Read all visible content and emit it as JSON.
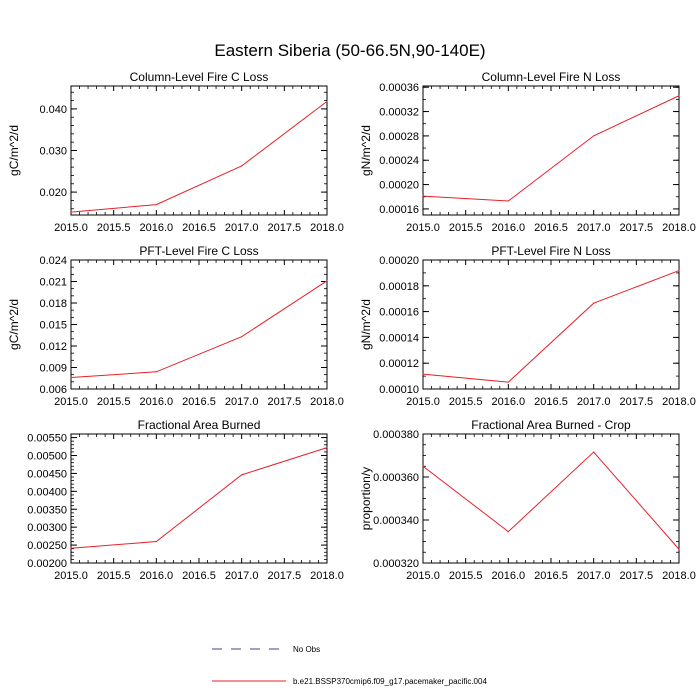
{
  "figure": {
    "title": "Eastern Siberia (50-66.5N,90-140E)"
  },
  "legend": {
    "placement": "bottom-center",
    "entries": [
      {
        "label": "No Obs",
        "style": "dashed",
        "color": "#4b3b8c"
      },
      {
        "label": "b.e21.BSSP370cmip6.f09_g17.pacemaker_pacific.004",
        "style": "solid",
        "color": "#e8202a"
      }
    ]
  },
  "chart_data": [
    {
      "type": "line",
      "title": "Column-Level Fire C Loss",
      "ylabel": "gC/m^2/d",
      "xlabel": "",
      "x": [
        2015.0,
        2016.0,
        2017.0,
        2018.0
      ],
      "xlim": [
        2015.0,
        2018.0
      ],
      "xticks": [
        "2015.0",
        "2015.5",
        "2016.0",
        "2016.5",
        "2017.0",
        "2017.5",
        "2018.0"
      ],
      "ylim": [
        0.0145,
        0.0455
      ],
      "yticks": [
        "0.020",
        "0.030",
        "0.040"
      ],
      "yminor_step": 0.002,
      "series": [
        {
          "color": "#e8202a",
          "values": [
            0.0152,
            0.017,
            0.0263,
            0.0418
          ]
        }
      ]
    },
    {
      "type": "line",
      "title": "Column-Level Fire N Loss",
      "ylabel": "gN/m^2/d",
      "xlabel": "",
      "x": [
        2015.0,
        2016.0,
        2017.0,
        2018.0
      ],
      "xlim": [
        2015.0,
        2018.0
      ],
      "xticks": [
        "2015.0",
        "2015.5",
        "2016.0",
        "2016.5",
        "2017.0",
        "2017.5",
        "2018.0"
      ],
      "ylim": [
        0.00015,
        0.000362
      ],
      "yticks": [
        "0.00016",
        "0.00020",
        "0.00024",
        "0.00028",
        "0.00032",
        "0.00036"
      ],
      "yminor_step": 2e-05,
      "series": [
        {
          "color": "#e8202a",
          "values": [
            0.000181,
            0.000173,
            0.00028,
            0.000346
          ]
        }
      ]
    },
    {
      "type": "line",
      "title": "PFT-Level Fire C Loss",
      "ylabel": "gC/m^2/d",
      "xlabel": "",
      "x": [
        2015.0,
        2016.0,
        2017.0,
        2018.0
      ],
      "xlim": [
        2015.0,
        2018.0
      ],
      "xticks": [
        "2015.0",
        "2015.5",
        "2016.0",
        "2016.5",
        "2017.0",
        "2017.5",
        "2018.0"
      ],
      "ylim": [
        0.006,
        0.024
      ],
      "yticks": [
        "0.006",
        "0.009",
        "0.012",
        "0.015",
        "0.018",
        "0.021",
        "0.024"
      ],
      "yminor_step": 0.001,
      "series": [
        {
          "color": "#e8202a",
          "values": [
            0.0076,
            0.0084,
            0.0133,
            0.0211
          ]
        }
      ]
    },
    {
      "type": "line",
      "title": "PFT-Level Fire N Loss",
      "ylabel": "gN/m^2/d",
      "xlabel": "",
      "x": [
        2015.0,
        2016.0,
        2017.0,
        2018.0
      ],
      "xlim": [
        2015.0,
        2018.0
      ],
      "xticks": [
        "2015.0",
        "2015.5",
        "2016.0",
        "2016.5",
        "2017.0",
        "2017.5",
        "2018.0"
      ],
      "ylim": [
        0.0001,
        0.0002
      ],
      "yticks": [
        "0.00010",
        "0.00012",
        "0.00014",
        "0.00016",
        "0.00018",
        "0.00020"
      ],
      "yminor_step": 1e-05,
      "series": [
        {
          "color": "#e8202a",
          "values": [
            0.0001115,
            0.0001053,
            0.0001665,
            0.0001918
          ]
        }
      ]
    },
    {
      "type": "line",
      "title": "Fractional Area Burned",
      "ylabel": "",
      "xlabel": "",
      "x": [
        2015.0,
        2016.0,
        2017.0,
        2018.0
      ],
      "xlim": [
        2015.0,
        2018.0
      ],
      "xticks": [
        "2015.0",
        "2015.5",
        "2016.0",
        "2016.5",
        "2017.0",
        "2017.5",
        "2018.0"
      ],
      "ylim": [
        0.002,
        0.0056
      ],
      "yticks": [
        "0.00200",
        "0.00250",
        "0.00300",
        "0.00350",
        "0.00400",
        "0.00450",
        "0.00500",
        "0.00550"
      ],
      "yminor_step": 0.0001,
      "series": [
        {
          "color": "#e8202a",
          "values": [
            0.00241,
            0.0026,
            0.00446,
            0.00522
          ]
        }
      ]
    },
    {
      "type": "line",
      "title": "Fractional Area Burned - Crop",
      "ylabel": "proportion/y",
      "xlabel": "",
      "x": [
        2015.0,
        2016.0,
        2017.0,
        2018.0
      ],
      "xlim": [
        2015.0,
        2018.0
      ],
      "xticks": [
        "2015.0",
        "2015.5",
        "2016.0",
        "2016.5",
        "2017.0",
        "2017.5",
        "2018.0"
      ],
      "ylim": [
        0.00032,
        0.00038
      ],
      "yticks": [
        "0.000320",
        "0.000340",
        "0.000360",
        "0.000380"
      ],
      "yminor_step": 5e-06,
      "series": [
        {
          "color": "#e8202a",
          "values": [
            0.000365,
            0.0003346,
            0.0003716,
            0.0003264
          ]
        }
      ]
    }
  ]
}
